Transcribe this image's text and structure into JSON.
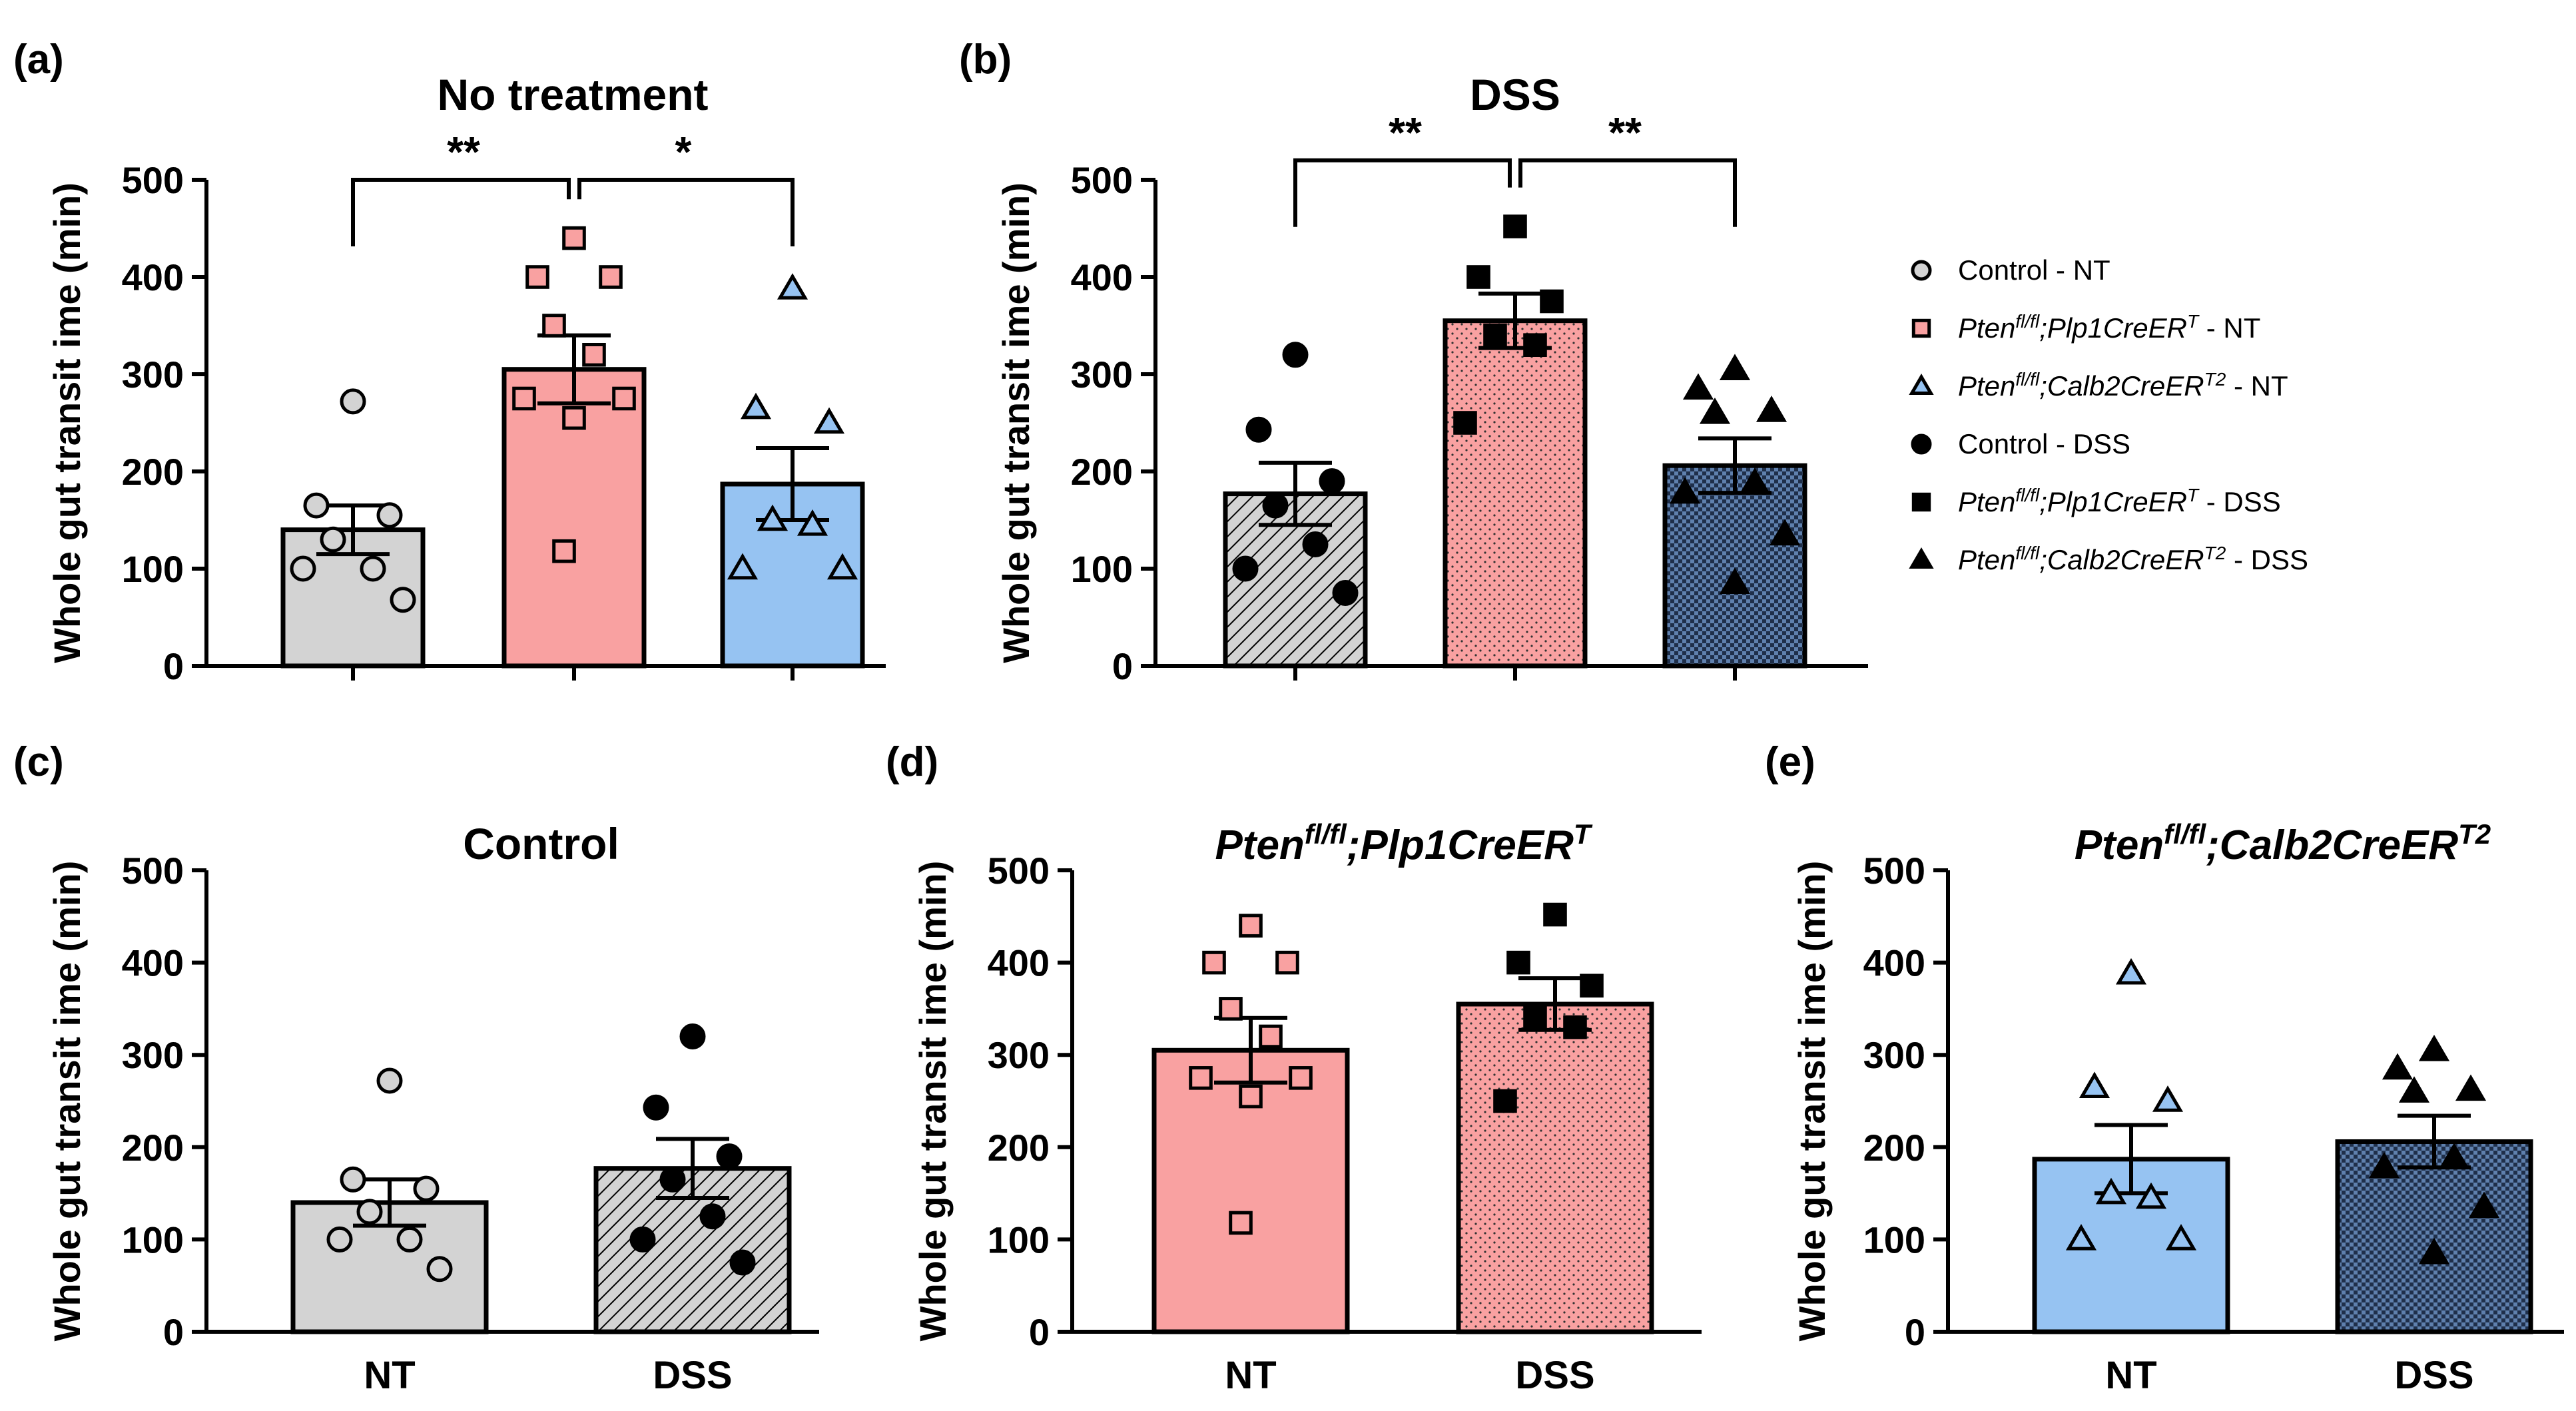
{
  "legend": [
    {
      "prefix": "Control - NT",
      "sup": "",
      "suffix": "",
      "color": "#d3d3d3",
      "marker": "circle",
      "filled": false
    },
    {
      "prefix": "Pten",
      "sup1": "fl/fl",
      "mid": ";Plp1CreER",
      "sup": "T",
      "suffix": " - NT",
      "color": "#f9a1a1",
      "marker": "square",
      "filled": false
    },
    {
      "prefix": "Pten",
      "sup1": "fl/fl",
      "mid": ";Calb2CreER",
      "sup": "T2",
      "suffix": " - NT",
      "color": "#96c3f2",
      "marker": "triangle",
      "filled": false
    },
    {
      "prefix": "Control - DSS",
      "sup": "",
      "suffix": "",
      "color": "#000000",
      "marker": "circle",
      "filled": true
    },
    {
      "prefix": "Pten",
      "sup1": "fl/fl",
      "mid": ";Plp1CreER",
      "sup": "T",
      "suffix": " - DSS",
      "color": "#000000",
      "marker": "square",
      "filled": true
    },
    {
      "prefix": "Pten",
      "sup1": "fl/fl",
      "mid": ";Calb2CreER",
      "sup": "T2",
      "suffix": " - DSS",
      "color": "#000000",
      "marker": "triangle",
      "filled": true
    }
  ],
  "chart_data": [
    {
      "label": "(a)",
      "type": "bar",
      "title": "No treatment",
      "ylabel": "Whole gut transit ime (min)",
      "ylim": [
        0,
        500
      ],
      "yticks": [
        0,
        100,
        200,
        300,
        400,
        500
      ],
      "categories": [
        "",
        "",
        ""
      ],
      "cat_tick_marks": true,
      "bars": [
        {
          "name": "Control - NT",
          "mean": 140,
          "sem": 25,
          "fill": "#d3d3d3",
          "pattern": "none",
          "marker": "circle",
          "marker_fill": "#d3d3d3",
          "points": [
            272,
            165,
            155,
            130,
            100,
            100,
            68
          ]
        },
        {
          "name": "Pten fl/fl;Plp1CreERT - NT",
          "mean": 305,
          "sem": 35,
          "fill": "#f9a1a1",
          "pattern": "none",
          "marker": "square",
          "marker_fill": "#f9a1a1",
          "points": [
            440,
            400,
            400,
            350,
            320,
            275,
            275,
            255,
            118
          ]
        },
        {
          "name": "Pten fl/fl;Calb2CreERT2 - NT",
          "mean": 187,
          "sem": 37,
          "fill": "#96c3f2",
          "pattern": "none",
          "marker": "triangle",
          "marker_fill": "#96c3f2",
          "points": [
            388,
            265,
            250,
            150,
            145,
            100,
            100
          ]
        }
      ],
      "brackets": [
        {
          "from": 0,
          "to": 1,
          "y": 500,
          "label": "**"
        },
        {
          "from": 1,
          "to": 2,
          "y": 500,
          "label": "*"
        }
      ]
    },
    {
      "label": "(b)",
      "type": "bar",
      "title": "DSS",
      "ylabel": "Whole gut transit ime (min)",
      "ylim": [
        0,
        500
      ],
      "yticks": [
        0,
        100,
        200,
        300,
        400,
        500
      ],
      "categories": [
        "",
        "",
        ""
      ],
      "cat_tick_marks": true,
      "bars": [
        {
          "name": "Control - DSS",
          "mean": 177,
          "sem": 32,
          "fill": "#d3d3d3",
          "pattern": "diag",
          "marker": "circle",
          "marker_fill": "#000000",
          "points": [
            320,
            243,
            190,
            165,
            125,
            100,
            75
          ]
        },
        {
          "name": "Pten fl/fl;Plp1CreERT - DSS",
          "mean": 355,
          "sem": 28,
          "fill": "#f9a1a1",
          "pattern": "dots",
          "marker": "square",
          "marker_fill": "#000000",
          "points": [
            452,
            400,
            375,
            340,
            330,
            250
          ]
        },
        {
          "name": "Pten fl/fl;Calb2CreERT2 - DSS",
          "mean": 206,
          "sem": 28,
          "fill": "#7b9cc4",
          "pattern": "check",
          "marker": "triangle",
          "marker_fill": "#000000",
          "points": [
            305,
            285,
            262,
            260,
            188,
            178,
            135,
            85
          ]
        }
      ],
      "brackets": [
        {
          "from": 0,
          "to": 1,
          "y": 520,
          "label": "**"
        },
        {
          "from": 1,
          "to": 2,
          "y": 520,
          "label": "**"
        }
      ]
    },
    {
      "label": "(c)",
      "type": "bar",
      "title": "Control",
      "ylabel": "Whole gut transit ime (min)",
      "ylim": [
        0,
        500
      ],
      "yticks": [
        0,
        100,
        200,
        300,
        400,
        500
      ],
      "categories": [
        "NT",
        "DSS"
      ],
      "cat_tick_marks": false,
      "bars": [
        {
          "name": "Control - NT",
          "mean": 140,
          "sem": 25,
          "fill": "#d3d3d3",
          "pattern": "none",
          "marker": "circle",
          "marker_fill": "#d3d3d3",
          "points": [
            272,
            165,
            155,
            130,
            100,
            100,
            68
          ]
        },
        {
          "name": "Control - DSS",
          "mean": 177,
          "sem": 32,
          "fill": "#d3d3d3",
          "pattern": "diag",
          "marker": "circle",
          "marker_fill": "#000000",
          "points": [
            320,
            243,
            190,
            165,
            125,
            100,
            75
          ]
        }
      ],
      "brackets": []
    },
    {
      "label": "(d)",
      "type": "bar",
      "title": "Pten",
      "title_sup1": "fl/fl",
      "title_mid": ";Plp1CreER",
      "title_sup": "T",
      "ylabel": "Whole gut transit ime (min)",
      "ylim": [
        0,
        500
      ],
      "yticks": [
        0,
        100,
        200,
        300,
        400,
        500
      ],
      "categories": [
        "NT",
        "DSS"
      ],
      "cat_tick_marks": false,
      "bars": [
        {
          "name": "Pten fl/fl;Plp1CreERT - NT",
          "mean": 305,
          "sem": 35,
          "fill": "#f9a1a1",
          "pattern": "none",
          "marker": "square",
          "marker_fill": "#f9a1a1",
          "points": [
            440,
            400,
            400,
            350,
            320,
            275,
            275,
            255,
            118
          ]
        },
        {
          "name": "Pten fl/fl;Plp1CreERT - DSS",
          "mean": 355,
          "sem": 28,
          "fill": "#f9a1a1",
          "pattern": "dots",
          "marker": "square",
          "marker_fill": "#000000",
          "points": [
            452,
            400,
            375,
            340,
            330,
            250
          ]
        }
      ],
      "brackets": []
    },
    {
      "label": "(e)",
      "type": "bar",
      "title": "Pten",
      "title_sup1": "fl/fl",
      "title_mid": ";Calb2CreER",
      "title_sup": "T2",
      "ylabel": "Whole gut transit ime (min)",
      "ylim": [
        0,
        500
      ],
      "yticks": [
        0,
        100,
        200,
        300,
        400,
        500
      ],
      "categories": [
        "NT",
        "DSS"
      ],
      "cat_tick_marks": false,
      "bars": [
        {
          "name": "Pten fl/fl;Calb2CreERT2 - NT",
          "mean": 187,
          "sem": 37,
          "fill": "#96c3f2",
          "pattern": "none",
          "marker": "triangle",
          "marker_fill": "#96c3f2",
          "points": [
            388,
            265,
            250,
            150,
            145,
            100,
            100
          ]
        },
        {
          "name": "Pten fl/fl;Calb2CreERT2 - DSS",
          "mean": 206,
          "sem": 28,
          "fill": "#7b9cc4",
          "pattern": "check",
          "marker": "triangle",
          "marker_fill": "#000000",
          "points": [
            305,
            285,
            262,
            260,
            188,
            178,
            135,
            85
          ]
        }
      ],
      "brackets": []
    }
  ]
}
